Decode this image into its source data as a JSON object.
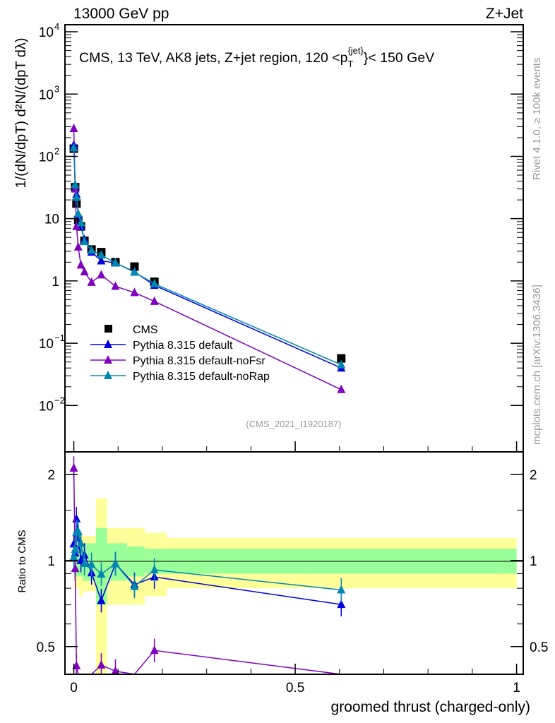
{
  "header": {
    "left": "13000 GeV pp",
    "right": "Z+Jet"
  },
  "side": {
    "rivet": "Rivet 4.1.0, ≥ 100k events",
    "mcplots": "mcplots.cern.ch [arXiv:1306.3436]"
  },
  "chart_data": {
    "type": "line",
    "title": "CMS, 13 TeV, AK8 jets, Z+jet region, 120 <p_T^{jet}< 150 GeV",
    "title_main": "CMS, 13 TeV, AK8 jets, Z+jet region, 120 <p",
    "title_sup": "{jet}",
    "title_sub": "T",
    "title_end": "}< 150 GeV",
    "analysis": "(CMS_2021_I1920187)",
    "ylabel": "1/(dN/dpT) d²N/(dpT dλ)",
    "xlabel": "groomed thrust (charged-only)",
    "ratio_ylabel": "Ratio to CMS",
    "xlim": [
      -0.02,
      1.015
    ],
    "ylim": [
      0.0018,
      13000
    ],
    "ratio_ylim": [
      0.4,
      2.4
    ],
    "xticks": [
      {
        "v": 0,
        "l": "0"
      },
      {
        "v": 0.5,
        "l": "0.5"
      },
      {
        "v": 1,
        "l": "1"
      }
    ],
    "yticks": [
      {
        "v": 0.01,
        "b": "10",
        "e": "−2"
      },
      {
        "v": 0.1,
        "b": "10",
        "e": "−1"
      },
      {
        "v": 1,
        "b": "1",
        "e": ""
      },
      {
        "v": 10,
        "b": "10",
        "e": ""
      },
      {
        "v": 100,
        "b": "10",
        "e": "2"
      },
      {
        "v": 1000,
        "b": "10",
        "e": "3"
      },
      {
        "v": 10000,
        "b": "10",
        "e": "4"
      }
    ],
    "ratio_yticks": [
      {
        "v": 0.5,
        "l": "0.5"
      },
      {
        "v": 1,
        "l": "1"
      },
      {
        "v": 2,
        "l": "2"
      }
    ],
    "legend_position": "middle-left",
    "bin_edges": [
      0,
      0.002,
      0.005,
      0.008,
      0.012,
      0.02,
      0.03,
      0.05,
      0.075,
      0.12,
      0.16,
      0.21,
      1.0
    ],
    "x": [
      0.0,
      0.003,
      0.006,
      0.01,
      0.016,
      0.024,
      0.04,
      0.062,
      0.094,
      0.137,
      0.182,
      0.604
    ],
    "band_inner": [
      0.12,
      0.12,
      0.12,
      0.12,
      0.12,
      0.15,
      0.15,
      0.3,
      0.15,
      0.12,
      0.1,
      0.1
    ],
    "band_outer": [
      0.2,
      0.2,
      0.2,
      0.2,
      0.25,
      0.22,
      0.22,
      0.65,
      0.3,
      0.3,
      0.25,
      0.2
    ],
    "series": [
      {
        "name": "CMS",
        "color": "#000000",
        "marker": "square",
        "values": [
          133,
          32,
          17.5,
          9.5,
          7.5,
          4.4,
          3.2,
          2.9,
          2.0,
          1.7,
          0.97,
          0.057
        ]
      },
      {
        "name": "Pythia 8.315 default",
        "color": "#0000e0",
        "marker": "triangle",
        "values": [
          152,
          34,
          24.5,
          11.4,
          7.5,
          4.6,
          2.9,
          2.1,
          1.95,
          1.4,
          0.85,
          0.04
        ]
      },
      {
        "name": "Pythia 8.315 default-noFsr",
        "color": "#8000c0",
        "marker": "triangle",
        "values": [
          280,
          30,
          7.5,
          3.5,
          1.8,
          1.4,
          0.95,
          1.25,
          0.82,
          0.65,
          0.47,
          0.018
        ]
      },
      {
        "name": "Pythia 8.315 default-noRap",
        "color": "#0088b0",
        "marker": "triangle",
        "values": [
          137,
          35,
          22,
          12,
          8.6,
          4.3,
          3.1,
          2.6,
          1.95,
          1.38,
          0.9,
          0.045
        ]
      }
    ]
  }
}
